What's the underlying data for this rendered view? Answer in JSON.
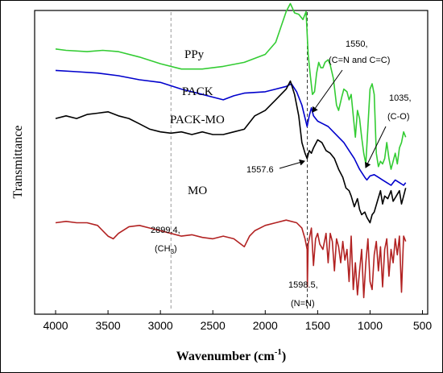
{
  "chart_data": {
    "type": "line",
    "xlabel": "Wavenumber (cm",
    "xlabel_sup": "-1",
    "xlabel_close": ")",
    "ylabel": "Transmittance",
    "xlim": [
      4200,
      450
    ],
    "x_ticks": [
      4000,
      3500,
      3000,
      2500,
      2000,
      1500,
      1000,
      500
    ],
    "y_ticks_shown": false,
    "grid": false,
    "series": [
      {
        "name": "PPy",
        "color": "#33cc33",
        "x": [
          4000,
          3900,
          3700,
          3550,
          3400,
          3200,
          3000,
          2800,
          2600,
          2400,
          2200,
          2000,
          1900,
          1800,
          1760,
          1720,
          1680,
          1640,
          1610,
          1590,
          1570,
          1550,
          1530,
          1510,
          1490,
          1470,
          1450,
          1430,
          1400,
          1380,
          1350,
          1320,
          1300,
          1270,
          1250,
          1220,
          1200,
          1180,
          1160,
          1140,
          1120,
          1100,
          1080,
          1060,
          1040,
          1020,
          1000,
          980,
          960,
          940,
          920,
          900,
          880,
          860,
          840,
          820,
          800,
          780,
          760,
          740,
          720,
          700,
          680,
          660
        ],
        "y": [
          0.95,
          0.945,
          0.94,
          0.945,
          0.94,
          0.92,
          0.895,
          0.875,
          0.875,
          0.885,
          0.9,
          0.93,
          0.975,
          1.09,
          1.12,
          1.085,
          1.08,
          1.06,
          1.09,
          0.93,
          0.85,
          0.78,
          0.79,
          0.86,
          0.9,
          0.88,
          0.88,
          0.9,
          0.91,
          0.89,
          0.84,
          0.74,
          0.72,
          0.77,
          0.8,
          0.79,
          0.76,
          0.78,
          0.7,
          0.62,
          0.72,
          0.69,
          0.62,
          0.56,
          0.52,
          0.66,
          0.8,
          0.82,
          0.78,
          0.56,
          0.51,
          0.53,
          0.52,
          0.54,
          0.6,
          0.54,
          0.5,
          0.53,
          0.56,
          0.52,
          0.58,
          0.6,
          0.64,
          0.62
        ]
      },
      {
        "name": "PACK",
        "color": "#0000cc",
        "x": [
          4000,
          3800,
          3600,
          3400,
          3200,
          3000,
          2800,
          2600,
          2400,
          2300,
          2200,
          2000,
          1900,
          1800,
          1750,
          1700,
          1650,
          1600,
          1580,
          1560,
          1540,
          1500,
          1450,
          1400,
          1350,
          1300,
          1250,
          1200,
          1150,
          1100,
          1050,
          1030,
          1000,
          960,
          920,
          880,
          840,
          800,
          760,
          720,
          680,
          660
        ],
        "y": [
          0.87,
          0.865,
          0.86,
          0.85,
          0.835,
          0.825,
          0.8,
          0.78,
          0.76,
          0.775,
          0.785,
          0.79,
          0.8,
          0.81,
          0.82,
          0.79,
          0.74,
          0.66,
          0.7,
          0.73,
          0.7,
          0.68,
          0.67,
          0.66,
          0.64,
          0.62,
          0.6,
          0.57,
          0.54,
          0.5,
          0.47,
          0.46,
          0.475,
          0.48,
          0.47,
          0.46,
          0.45,
          0.44,
          0.46,
          0.45,
          0.44,
          0.45
        ]
      },
      {
        "name": "PACK-MO",
        "color": "#000000",
        "x": [
          4000,
          3900,
          3800,
          3700,
          3600,
          3500,
          3400,
          3300,
          3200,
          3100,
          3000,
          2900,
          2800,
          2700,
          2600,
          2500,
          2400,
          2300,
          2200,
          2100,
          2000,
          1900,
          1800,
          1760,
          1720,
          1680,
          1650,
          1620,
          1600,
          1580,
          1560,
          1540,
          1500,
          1460,
          1420,
          1380,
          1340,
          1300,
          1260,
          1230,
          1200,
          1180,
          1150,
          1120,
          1100,
          1080,
          1050,
          1030,
          1000,
          980,
          960,
          930,
          900,
          880,
          860,
          830,
          800,
          780,
          750,
          720,
          700,
          680,
          660
        ],
        "y": [
          0.69,
          0.7,
          0.69,
          0.705,
          0.71,
          0.715,
          0.7,
          0.69,
          0.67,
          0.65,
          0.64,
          0.635,
          0.64,
          0.63,
          0.64,
          0.63,
          0.63,
          0.64,
          0.65,
          0.7,
          0.72,
          0.76,
          0.8,
          0.83,
          0.78,
          0.7,
          0.6,
          0.56,
          0.54,
          0.57,
          0.56,
          0.58,
          0.61,
          0.6,
          0.57,
          0.56,
          0.54,
          0.5,
          0.47,
          0.43,
          0.42,
          0.4,
          0.36,
          0.39,
          0.35,
          0.33,
          0.34,
          0.32,
          0.3,
          0.33,
          0.34,
          0.38,
          0.42,
          0.37,
          0.4,
          0.39,
          0.42,
          0.38,
          0.4,
          0.42,
          0.37,
          0.4,
          0.43
        ]
      },
      {
        "name": "MO",
        "color": "#b22222",
        "x": [
          4000,
          3900,
          3800,
          3700,
          3600,
          3500,
          3450,
          3400,
          3300,
          3200,
          3100,
          3000,
          2900,
          2800,
          2700,
          2600,
          2500,
          2400,
          2300,
          2200,
          2150,
          2100,
          2000,
          1900,
          1800,
          1700,
          1650,
          1620,
          1600,
          1598,
          1590,
          1560,
          1540,
          1520,
          1500,
          1480,
          1450,
          1420,
          1400,
          1380,
          1360,
          1340,
          1320,
          1300,
          1280,
          1260,
          1240,
          1220,
          1200,
          1180,
          1160,
          1140,
          1120,
          1100,
          1080,
          1060,
          1040,
          1020,
          1000,
          980,
          960,
          940,
          920,
          900,
          880,
          860,
          840,
          820,
          800,
          780,
          760,
          740,
          720,
          700,
          690,
          680,
          660
        ],
        "y": [
          0.3,
          0.305,
          0.3,
          0.3,
          0.29,
          0.25,
          0.24,
          0.26,
          0.285,
          0.29,
          0.28,
          0.27,
          0.26,
          0.25,
          0.255,
          0.245,
          0.24,
          0.25,
          0.24,
          0.21,
          0.25,
          0.27,
          0.29,
          0.3,
          0.31,
          0.3,
          0.28,
          0.24,
          0.2,
          0.06,
          0.22,
          0.28,
          0.14,
          0.24,
          0.26,
          0.22,
          0.2,
          0.26,
          0.15,
          0.26,
          0.23,
          0.12,
          0.24,
          0.21,
          0.15,
          0.23,
          0.16,
          0.2,
          0.08,
          0.25,
          0.05,
          0.15,
          0.03,
          0.12,
          0.2,
          0.02,
          0.15,
          0.24,
          0.08,
          0.05,
          0.18,
          0.23,
          0.12,
          0.21,
          0.06,
          0.2,
          0.24,
          0.1,
          0.2,
          0.15,
          0.24,
          0.18,
          0.25,
          0.04,
          0.15,
          0.25,
          0.23
        ]
      }
    ],
    "annotations": [
      {
        "label_lines": [
          "1550,",
          "(C=N and C=C)"
        ]
      },
      {
        "label_lines": [
          "1035,",
          "(C-O)"
        ]
      },
      {
        "label_lines": [
          "1557.6"
        ]
      },
      {
        "label_lines": [
          "2899.4,",
          "(CH3)"
        ]
      },
      {
        "label_lines": [
          "1598.5,",
          "(N=N)"
        ]
      }
    ],
    "reference_lines": [
      {
        "x": 2899.4,
        "style": "dashed",
        "color": "#999999"
      },
      {
        "x": 1598.5,
        "style": "dashed",
        "color": "#333333"
      }
    ]
  }
}
